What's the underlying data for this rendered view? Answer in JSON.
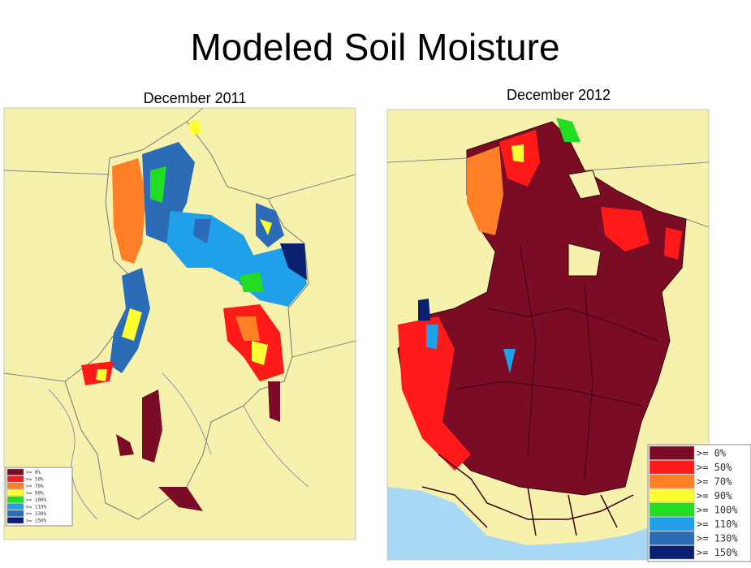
{
  "title": "Modeled Soil Moisture",
  "maps": [
    {
      "caption": "December 2011",
      "legend": [
        {
          "label": ">= 0%",
          "color": "#7b0c26"
        },
        {
          "label": ">= 50%",
          "color": "#ff1a1a"
        },
        {
          "label": ">= 70%",
          "color": "#ff7f27"
        },
        {
          "label": ">= 90%",
          "color": "#ffff33"
        },
        {
          "label": ">= 100%",
          "color": "#22dd22"
        },
        {
          "label": ">= 110%",
          "color": "#1fa0e8"
        },
        {
          "label": ">= 130%",
          "color": "#2c6bb5"
        },
        {
          "label": ">= 150%",
          "color": "#0a1f6e"
        }
      ]
    },
    {
      "caption": "December 2012",
      "legend": [
        {
          "label": ">= 0%",
          "color": "#7b0c26"
        },
        {
          "label": ">= 50%",
          "color": "#ff1a1a"
        },
        {
          "label": ">= 70%",
          "color": "#ff7f27"
        },
        {
          "label": ">= 90%",
          "color": "#ffff33"
        },
        {
          "label": ">= 100%",
          "color": "#22dd22"
        },
        {
          "label": ">= 110%",
          "color": "#1fa0e8"
        },
        {
          "label": ">= 130%",
          "color": "#2c6bb5"
        },
        {
          "label": ">= 150%",
          "color": "#0a1f6e"
        }
      ]
    }
  ]
}
